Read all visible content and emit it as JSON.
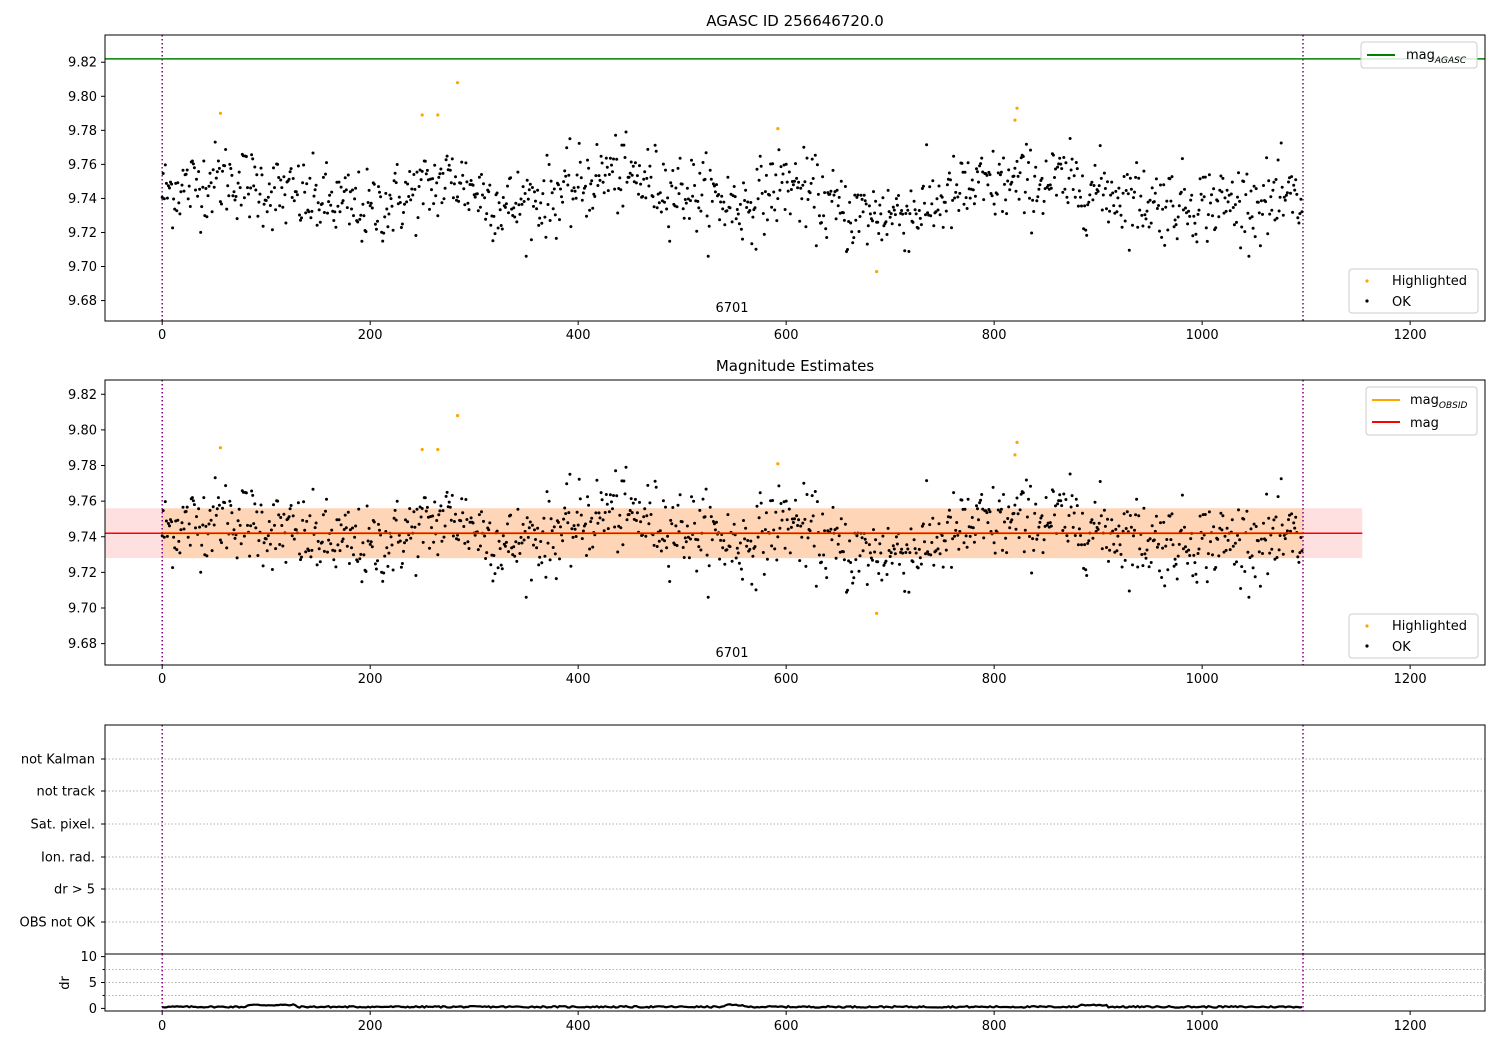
{
  "chart_data": [
    {
      "type": "scatter",
      "id": "agasc",
      "title": "AGASC ID 256646720.0",
      "xlim": [
        -55,
        1272
      ],
      "ylim": [
        9.668,
        9.836
      ],
      "x_ticks": [
        0,
        200,
        400,
        600,
        800,
        1000,
        1200
      ],
      "x_tick_labels": [
        "0",
        "200",
        "400",
        "600",
        "800",
        "1000",
        "1200"
      ],
      "y_ticks": [
        9.68,
        9.7,
        9.72,
        9.74,
        9.76,
        9.78,
        9.8,
        9.82
      ],
      "y_tick_labels": [
        "9.68",
        "9.70",
        "9.72",
        "9.74",
        "9.76",
        "9.78",
        "9.80",
        "9.82"
      ],
      "obsid_label": "6701",
      "obsid_label_x": 550,
      "vlines": [
        0,
        1097
      ],
      "hline": {
        "name": "mag_AGASC",
        "y": 9.822,
        "color": "#008000"
      },
      "legend_top": {
        "main": "mag",
        "sub": "AGASC",
        "color": "#008000"
      },
      "legend_bottom": [
        {
          "label": "Highlighted",
          "color": "#ffa500"
        },
        {
          "label": "OK",
          "color": "#000000"
        }
      ],
      "series": [
        {
          "name": "Highlighted",
          "color": "#ffa500",
          "x": [
            56,
            250,
            265,
            284,
            592,
            820,
            822,
            687
          ],
          "y": [
            9.79,
            9.789,
            9.789,
            9.808,
            9.781,
            9.786,
            9.793,
            9.697
          ]
        },
        {
          "name": "OK",
          "color": "#000000",
          "n_points": 1097,
          "x_range": [
            0,
            1097
          ],
          "mean_profile": [
            [
              0,
              9.744
            ],
            [
              60,
              9.752
            ],
            [
              120,
              9.742
            ],
            [
              200,
              9.733
            ],
            [
              280,
              9.752
            ],
            [
              330,
              9.735
            ],
            [
              380,
              9.742
            ],
            [
              430,
              9.755
            ],
            [
              500,
              9.745
            ],
            [
              560,
              9.735
            ],
            [
              600,
              9.75
            ],
            [
              660,
              9.73
            ],
            [
              720,
              9.732
            ],
            [
              780,
              9.746
            ],
            [
              860,
              9.75
            ],
            [
              960,
              9.737
            ],
            [
              1097,
              9.738
            ]
          ],
          "scatter_sigma": 0.011
        }
      ]
    },
    {
      "type": "scatter",
      "id": "estimates",
      "title": "Magnitude Estimates",
      "xlim": [
        -55,
        1272
      ],
      "ylim": [
        9.668,
        9.828
      ],
      "x_ticks": [
        0,
        200,
        400,
        600,
        800,
        1000,
        1200
      ],
      "x_tick_labels": [
        "0",
        "200",
        "400",
        "600",
        "800",
        "1000",
        "1200"
      ],
      "y_ticks": [
        9.68,
        9.7,
        9.72,
        9.74,
        9.76,
        9.78,
        9.8,
        9.82
      ],
      "y_tick_labels": [
        "9.68",
        "9.70",
        "9.72",
        "9.74",
        "9.76",
        "9.78",
        "9.80",
        "9.82"
      ],
      "obsid_label": "6701",
      "obsid_label_x": 550,
      "vlines": [
        0,
        1097
      ],
      "mag": {
        "value": 9.742,
        "band": [
          9.728,
          9.756
        ],
        "x_range": [
          -55,
          1154
        ],
        "color": "#ff0000"
      },
      "mag_obsid": {
        "value": 9.742,
        "band": [
          9.728,
          9.756
        ],
        "x_range": [
          0,
          1097
        ],
        "color": "#ffa500"
      },
      "legend_top": [
        {
          "main": "mag",
          "sub": "OBSID",
          "color": "#ffa500"
        },
        {
          "main": "mag",
          "sub": "",
          "color": "#ff0000"
        }
      ],
      "legend_bottom": [
        {
          "label": "Highlighted",
          "color": "#ffa500"
        },
        {
          "label": "OK",
          "color": "#000000"
        }
      ]
    },
    {
      "type": "flags",
      "id": "flags",
      "categories": [
        "not Kalman",
        "not track",
        "Sat. pixel.",
        "Ion. rad.",
        "dr > 5",
        "OBS not OK"
      ],
      "vlines": [
        0,
        1097
      ]
    },
    {
      "type": "line",
      "id": "dr",
      "ylabel": "dr",
      "xlim": [
        -55,
        1272
      ],
      "ylim": [
        -0.5,
        10.5
      ],
      "y_ticks": [
        0,
        5,
        10
      ],
      "y_tick_labels": [
        "0",
        "5",
        "10"
      ],
      "x_ticks": [
        0,
        200,
        400,
        600,
        800,
        1000,
        1200
      ],
      "x_tick_labels": [
        "0",
        "200",
        "400",
        "600",
        "800",
        "1000",
        "1200"
      ],
      "vlines": [
        0,
        1097
      ],
      "series": [
        {
          "name": "dr",
          "x_range": [
            0,
            1097
          ],
          "typical": 0.3,
          "max": 0.9
        }
      ]
    }
  ]
}
